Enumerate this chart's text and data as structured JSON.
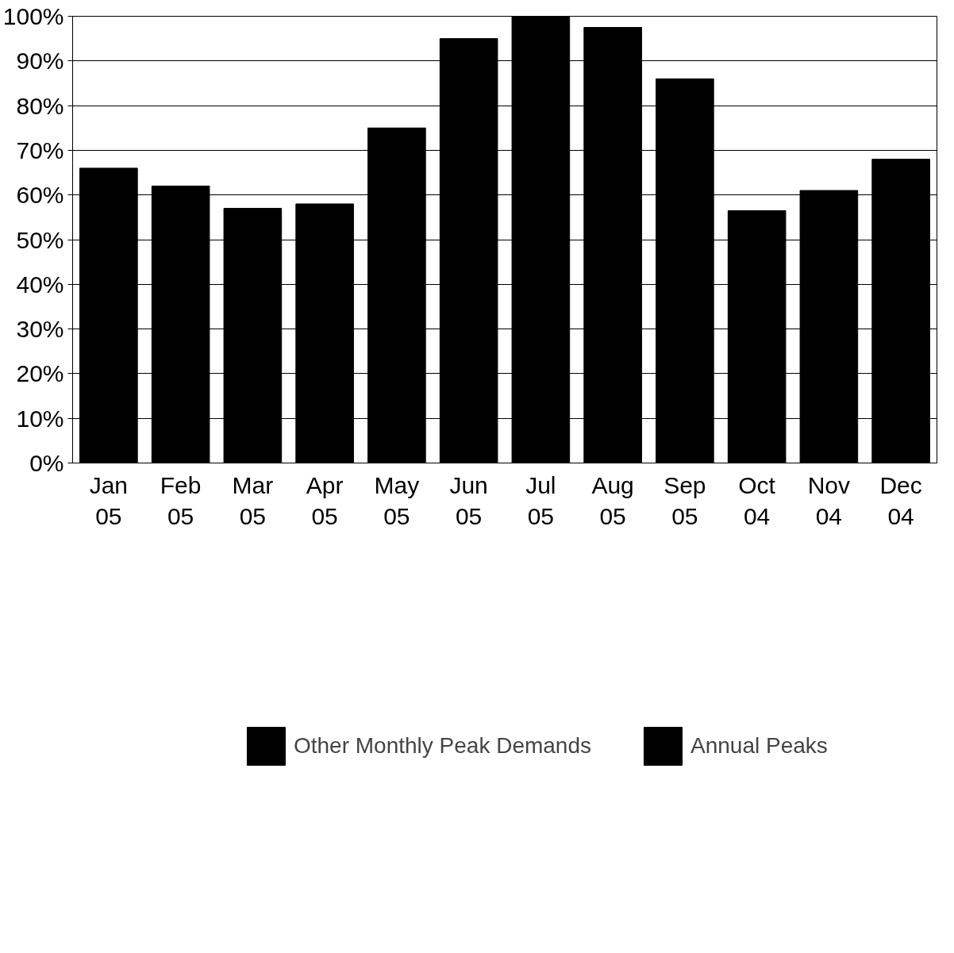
{
  "chart_data": {
    "type": "bar",
    "stacked": true,
    "categories": [
      "Jan 05",
      "Feb 05",
      "Mar 05",
      "Apr 05",
      "May 05",
      "Jun 05",
      "Jul 05",
      "Aug 05",
      "Sep 05",
      "Oct 04",
      "Nov 04",
      "Dec 04"
    ],
    "series": [
      {
        "name": "Other Monthly Peak Demands",
        "color": "#000000",
        "values": [
          66,
          62,
          57,
          58,
          75,
          95,
          null,
          97.5,
          86,
          56.5,
          61,
          68
        ]
      },
      {
        "name": "Annual Peaks",
        "color": "#000000",
        "values": [
          null,
          null,
          null,
          null,
          null,
          null,
          100,
          null,
          null,
          null,
          null,
          null
        ]
      }
    ],
    "ylim": [
      0,
      100
    ],
    "yticks": [
      {
        "value": 0,
        "label": "0%"
      },
      {
        "value": 10,
        "label": "10%"
      },
      {
        "value": 20,
        "label": "20%"
      },
      {
        "value": 30,
        "label": "30%"
      },
      {
        "value": 40,
        "label": "40%"
      },
      {
        "value": 50,
        "label": "50%"
      },
      {
        "value": 60,
        "label": "60%"
      },
      {
        "value": 70,
        "label": "70%"
      },
      {
        "value": 80,
        "label": "80%"
      },
      {
        "value": 90,
        "label": "90%"
      },
      {
        "value": 100,
        "label": "100%"
      }
    ],
    "grid": "y",
    "legend": "bottom"
  }
}
